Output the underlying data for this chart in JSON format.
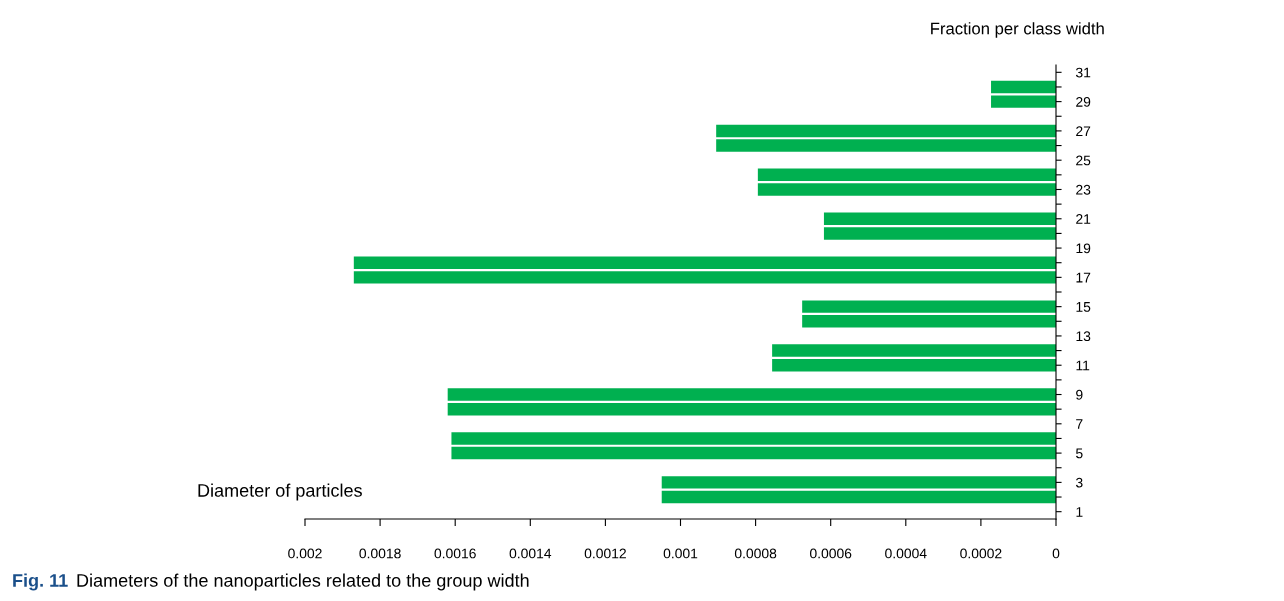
{
  "chart_data": {
    "type": "bar",
    "orientation": "horizontal",
    "ylabel": "Fraction per class width",
    "xlabel": "Diameter of particles",
    "categories": [
      "31",
      null,
      "29",
      null,
      "27",
      null,
      "25",
      null,
      "23",
      null,
      "21",
      null,
      "19",
      null,
      "17",
      null,
      "15",
      null,
      "13",
      null,
      "11",
      null,
      "9",
      null,
      "7",
      null,
      "5",
      null,
      "3",
      null,
      "1"
    ],
    "values": [
      null,
      0.000173,
      0.000173,
      null,
      0.000905,
      0.000905,
      null,
      0.000794,
      0.000794,
      null,
      0.000618,
      0.000618,
      null,
      0.00187,
      0.00187,
      null,
      0.000676,
      0.000676,
      null,
      0.000756,
      0.000756,
      null,
      0.00162,
      0.00162,
      null,
      0.00161,
      0.00161,
      null,
      0.00105,
      0.00105,
      null
    ],
    "color": "#00b050",
    "xlim": [
      0.002,
      0
    ],
    "xticks": [
      0.002,
      0.0018,
      0.0016,
      0.0014,
      0.0012,
      0.001,
      0.0008,
      0.0006,
      0.0004,
      0.0002,
      0
    ],
    "grid": false,
    "legend": false,
    "annotations": [
      "Fig. 11",
      "Diameters of the nanoparticles related to the group width"
    ]
  }
}
